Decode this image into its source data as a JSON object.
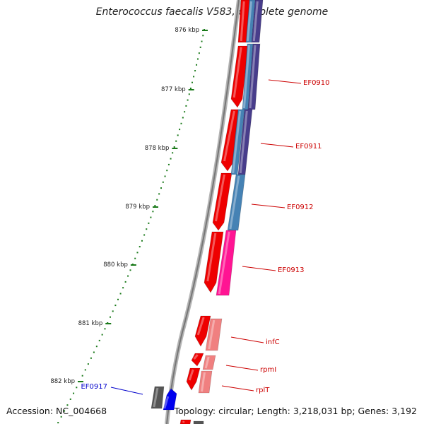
{
  "title": "Enterococcus faecalis V583, complete genome",
  "accession_text": "Accession: NC_004668",
  "topology_text": "Topology: circular; Length: 3,218,031 bp; Genes: 3,192",
  "colors": {
    "backbone": "#8a8a8a",
    "tick": "#1a7a1a",
    "forward_gene": "#ee0000",
    "label_red": "#cc0000",
    "label_blue": "#0000cc",
    "steelblue": "#4682b4",
    "slateblue": "#483d8b",
    "pink": "#ff1493",
    "lightpink": "#f08080",
    "grey": "#555555",
    "blue": "#0000ee"
  },
  "ticks": [
    {
      "label": "876 kbp"
    },
    {
      "label": "877 kbp"
    },
    {
      "label": "878 kbp"
    },
    {
      "label": "879 kbp"
    },
    {
      "label": "880 kbp"
    },
    {
      "label": "881 kbp"
    },
    {
      "label": "882 kbp"
    }
  ],
  "genes": [
    {
      "label": "EF0910",
      "label_color": "red"
    },
    {
      "label": "EF0911",
      "label_color": "red"
    },
    {
      "label": "EF0912",
      "label_color": "red"
    },
    {
      "label": "EF0913",
      "label_color": "red"
    },
    {
      "label": "infC",
      "label_color": "red"
    },
    {
      "label": "rpmI",
      "label_color": "red"
    },
    {
      "label": "rplT",
      "label_color": "red"
    },
    {
      "label": "EF0917",
      "label_color": "blue"
    }
  ]
}
